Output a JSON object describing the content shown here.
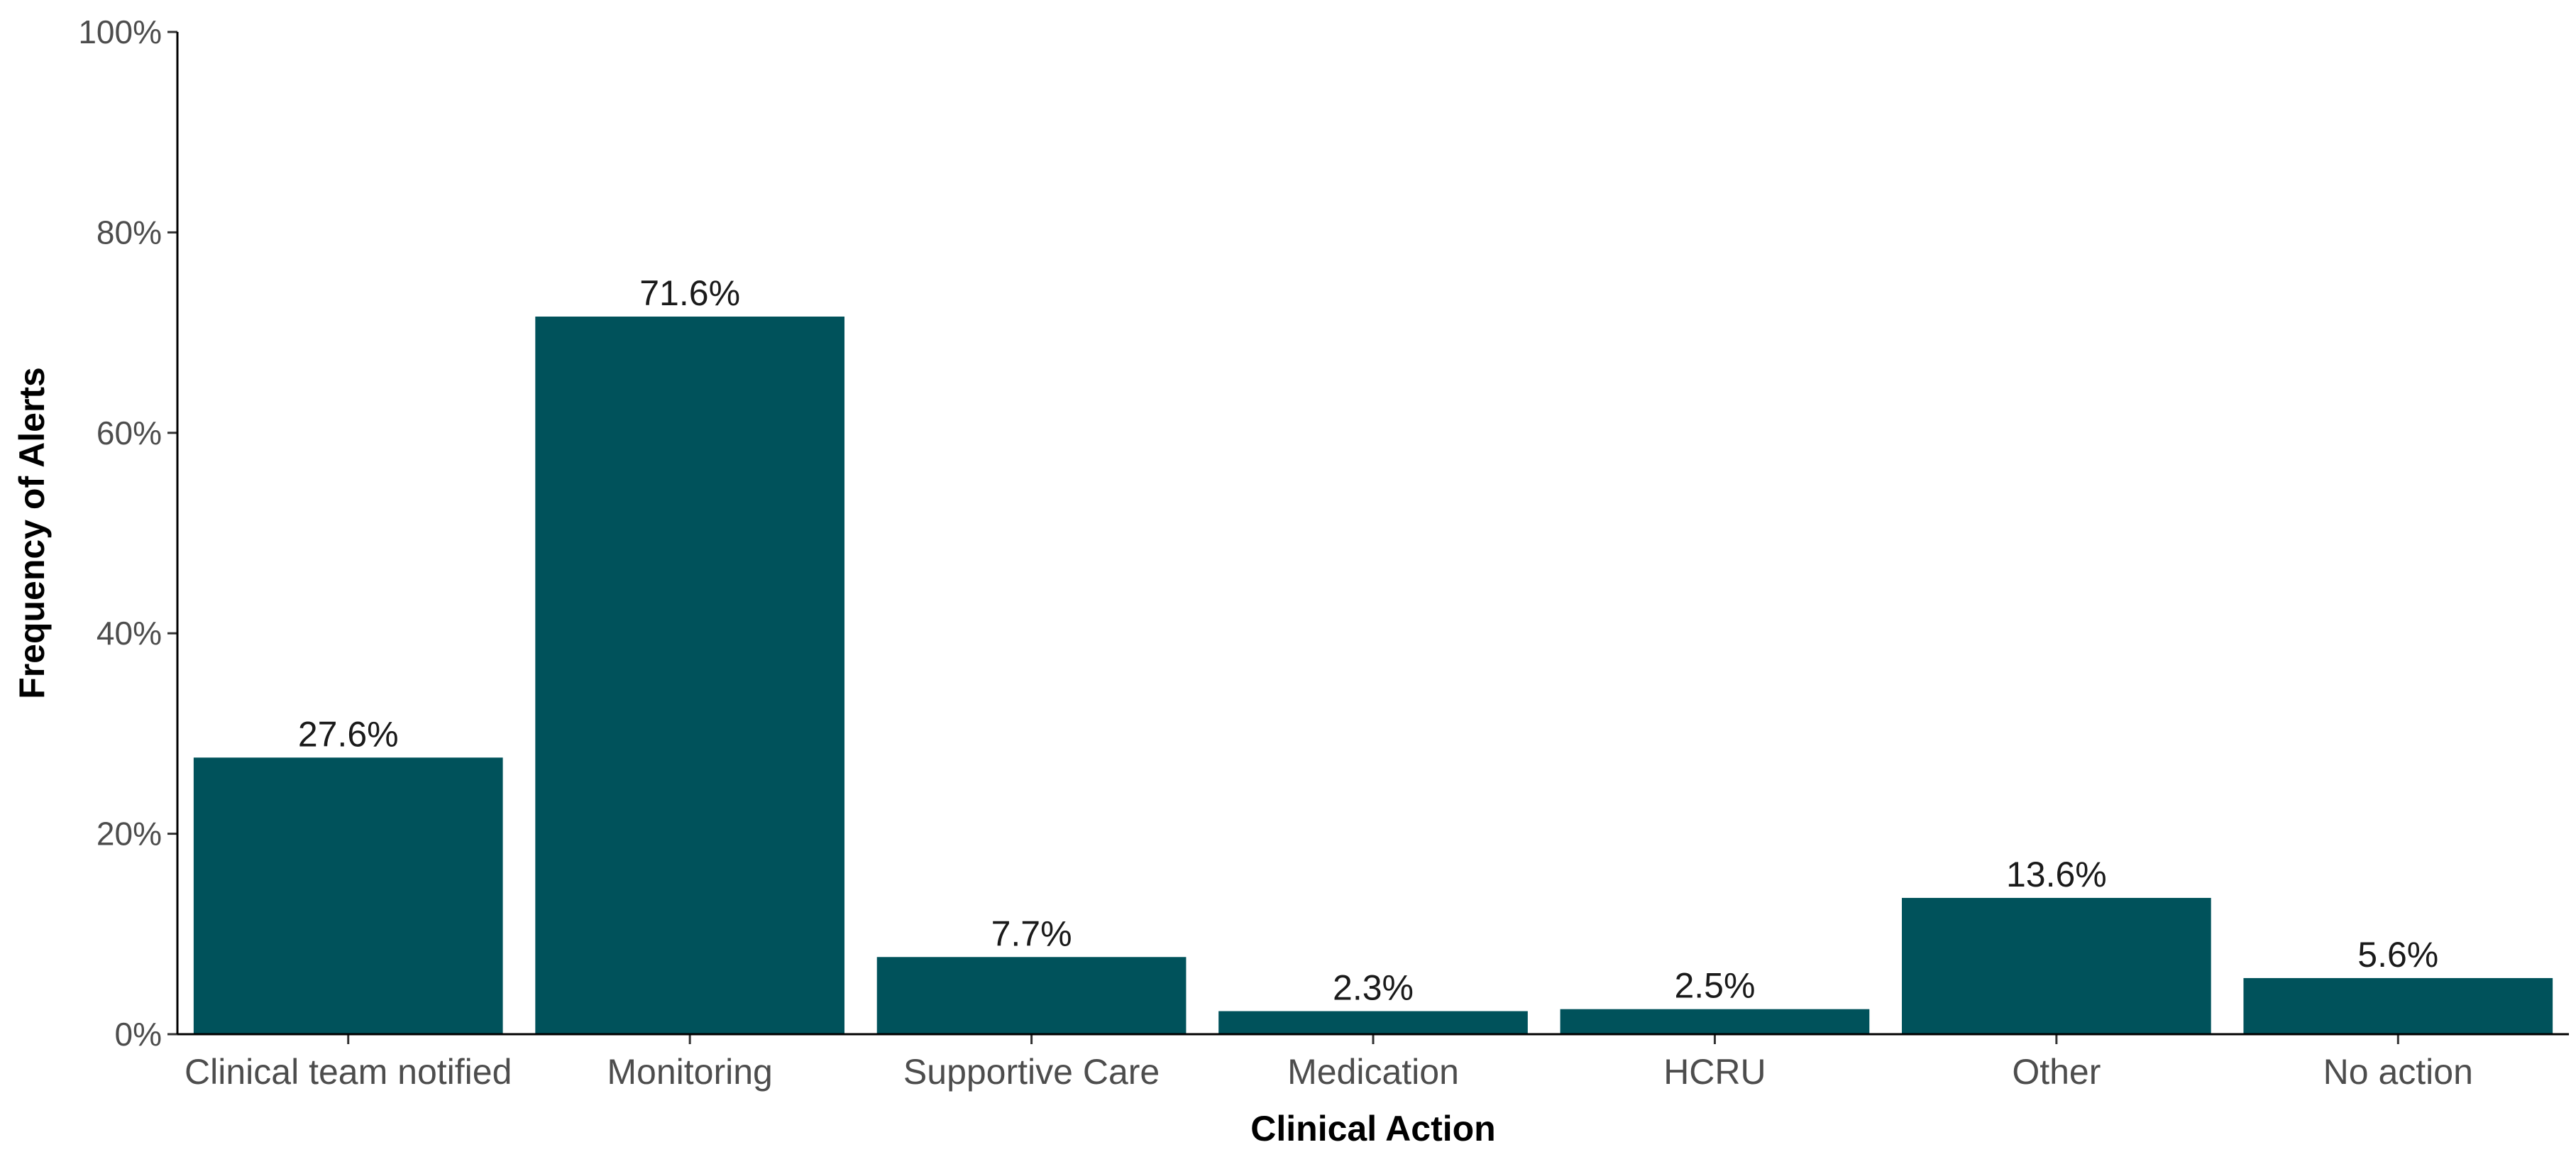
{
  "chart_data": {
    "type": "bar",
    "title": "",
    "xlabel": "Clinical Action",
    "ylabel": "Frequency of Alerts",
    "categories": [
      "Clinical team notified",
      "Monitoring",
      "Supportive Care",
      "Medication",
      "HCRU",
      "Other",
      "No action"
    ],
    "values": [
      27.6,
      71.6,
      7.7,
      2.3,
      2.5,
      13.6,
      5.6
    ],
    "data_labels": [
      "27.6%",
      "71.6%",
      "7.7%",
      "2.3%",
      "2.5%",
      "13.6%",
      "5.6%"
    ],
    "ylim": [
      0,
      100
    ],
    "yticks": [
      0,
      20,
      40,
      60,
      80,
      100
    ],
    "ytick_labels": [
      "0%",
      "20%",
      "40%",
      "60%",
      "80%",
      "100%"
    ],
    "grid": false,
    "legend": "none",
    "bar_color": "#00525b"
  }
}
